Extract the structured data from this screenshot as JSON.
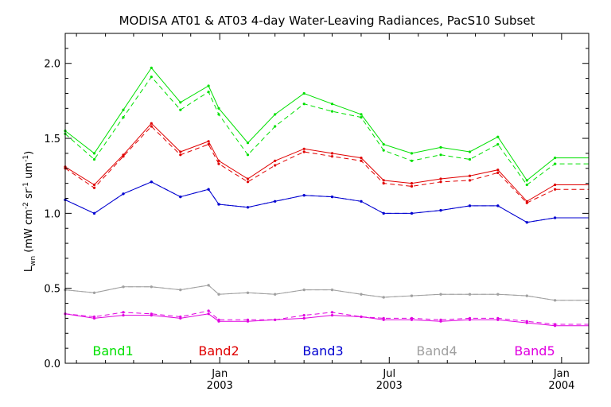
{
  "chart_data": {
    "type": "line",
    "title": "MODISA AT01 & AT03 4-day Water-Leaving Radiances, PacS10 Subset",
    "ylabel": "Lwn (mW cm-2 sr-1 um-1)",
    "ylabel_parts": {
      "main": "L",
      "sub": "wn",
      "units_a": " (mW cm",
      "exp1": "-2",
      "units_b": " sr",
      "exp2": "-1",
      "units_c": " um",
      "exp3": "-1",
      "units_d": ")"
    },
    "xlabel": "",
    "xlim": [
      "2002-07-20",
      "2004-01-30"
    ],
    "ylim": [
      0.0,
      2.2
    ],
    "yticks": [
      {
        "value": 0.0,
        "label": "0.0"
      },
      {
        "value": 0.5,
        "label": "0.5"
      },
      {
        "value": 1.0,
        "label": "1.0"
      },
      {
        "value": 1.5,
        "label": "1.5"
      },
      {
        "value": 2.0,
        "label": "2.0"
      }
    ],
    "xticks": [
      {
        "date": "2003-01-01",
        "label": "Jan",
        "year": "2003"
      },
      {
        "date": "2003-07-01",
        "label": "Jul",
        "year": "2003"
      },
      {
        "date": "2004-01-01",
        "label": "Jan",
        "year": "2004"
      }
    ],
    "x_dates": [
      "2002-07-20",
      "2002-08-20",
      "2002-09-20",
      "2002-10-20",
      "2002-11-20",
      "2002-12-20",
      "2002-12-31",
      "2003-01-31",
      "2003-03-01",
      "2003-04-01",
      "2003-05-01",
      "2003-06-01",
      "2003-06-25",
      "2003-07-25",
      "2003-08-25",
      "2003-09-25",
      "2003-10-25",
      "2003-11-25",
      "2003-12-25",
      "2004-01-30"
    ],
    "series": [
      {
        "name": "Band1",
        "color": "#00e000",
        "solid": [
          1.55,
          1.4,
          1.69,
          1.97,
          1.74,
          1.85,
          1.7,
          1.47,
          1.66,
          1.8,
          1.73,
          1.66,
          1.46,
          1.4,
          1.44,
          1.41,
          1.51,
          1.22,
          1.37,
          1.37
        ],
        "dashed": [
          1.53,
          1.36,
          1.64,
          1.91,
          1.69,
          1.81,
          1.66,
          1.39,
          1.58,
          1.73,
          1.68,
          1.64,
          1.42,
          1.35,
          1.39,
          1.36,
          1.46,
          1.19,
          1.33,
          1.33
        ]
      },
      {
        "name": "Band2",
        "color": "#e00000",
        "solid": [
          1.31,
          1.19,
          1.39,
          1.6,
          1.41,
          1.48,
          1.35,
          1.23,
          1.35,
          1.43,
          1.4,
          1.37,
          1.22,
          1.2,
          1.23,
          1.25,
          1.29,
          1.08,
          1.19,
          1.19
        ],
        "dashed": [
          1.3,
          1.17,
          1.38,
          1.58,
          1.39,
          1.46,
          1.33,
          1.21,
          1.32,
          1.41,
          1.38,
          1.35,
          1.2,
          1.18,
          1.21,
          1.22,
          1.27,
          1.07,
          1.16,
          1.16
        ]
      },
      {
        "name": "Band3",
        "color": "#0000d0",
        "solid": [
          1.09,
          1.0,
          1.13,
          1.21,
          1.11,
          1.16,
          1.06,
          1.04,
          1.08,
          1.12,
          1.11,
          1.08,
          1.0,
          1.0,
          1.02,
          1.05,
          1.05,
          0.94,
          0.97,
          0.97
        ],
        "dashed": [
          1.09,
          1.0,
          1.13,
          1.21,
          1.11,
          1.16,
          1.06,
          1.04,
          1.08,
          1.12,
          1.11,
          1.08,
          1.0,
          1.0,
          1.02,
          1.05,
          1.05,
          0.94,
          0.97,
          0.97
        ]
      },
      {
        "name": "Band4",
        "color": "#a0a0a0",
        "solid": [
          0.49,
          0.47,
          0.51,
          0.51,
          0.49,
          0.52,
          0.46,
          0.47,
          0.46,
          0.49,
          0.49,
          0.46,
          0.44,
          0.45,
          0.46,
          0.46,
          0.46,
          0.45,
          0.42,
          0.42
        ],
        "dashed": [
          0.49,
          0.47,
          0.51,
          0.51,
          0.49,
          0.52,
          0.46,
          0.47,
          0.46,
          0.49,
          0.49,
          0.46,
          0.44,
          0.45,
          0.46,
          0.46,
          0.46,
          0.45,
          0.42,
          0.42
        ]
      },
      {
        "name": "Band5",
        "color": "#e000e0",
        "solid": [
          0.33,
          0.3,
          0.32,
          0.32,
          0.3,
          0.33,
          0.28,
          0.28,
          0.29,
          0.3,
          0.32,
          0.31,
          0.29,
          0.29,
          0.28,
          0.29,
          0.29,
          0.27,
          0.25,
          0.25
        ],
        "dashed": [
          0.33,
          0.31,
          0.34,
          0.33,
          0.31,
          0.35,
          0.29,
          0.29,
          0.29,
          0.32,
          0.34,
          0.31,
          0.3,
          0.3,
          0.29,
          0.3,
          0.3,
          0.28,
          0.26,
          0.26
        ]
      }
    ],
    "grid": false,
    "legend": "bottom"
  }
}
